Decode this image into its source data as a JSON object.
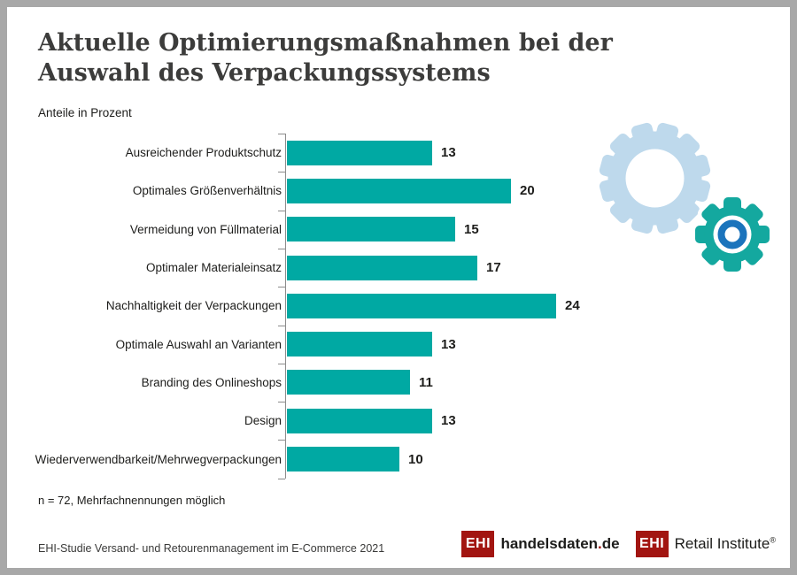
{
  "header": {
    "title_line1": "Aktuelle Optimierungsmaßnahmen bei der",
    "title_line2": "Auswahl des Verpackungssystems",
    "subtitle": "Anteile in Prozent"
  },
  "chart_data": {
    "type": "bar",
    "orientation": "horizontal",
    "title": "Aktuelle Optimierungsmaßnahmen bei der Auswahl des Verpackungssystems",
    "xlabel": "Anteile in Prozent",
    "categories": [
      "Ausreichender Produktschutz",
      "Optimales Größenverhältnis",
      "Vermeidung von Füllmaterial",
      "Optimaler Materialeinsatz",
      "Nachhaltigkeit der Verpackungen",
      "Optimale Auswahl an Varianten",
      "Branding des Onlineshops",
      "Design",
      "Wiederverwendbarkeit/Mehrwegverpackungen"
    ],
    "values": [
      13,
      20,
      15,
      17,
      24,
      13,
      11,
      13,
      10
    ],
    "xlim": [
      0,
      26
    ],
    "grid": false,
    "legend": false,
    "value_labels": true,
    "bar_color": "#00a9a3"
  },
  "footnote": "n = 72, Mehrfachnennungen möglich",
  "source": "EHI-Studie Versand- und Retourenmanagement im E-Commerce 2021",
  "logos": {
    "handelsdaten": {
      "box": "EHI",
      "name": "handelsdaten",
      "dot": ".",
      "tld": "de"
    },
    "retail": {
      "box": "EHI",
      "name": "Retail Institute",
      "reg": "®"
    }
  },
  "decor": {
    "gear_large_color": "#bed9ec",
    "gear_small_color": "#14a89f",
    "gear_ring_color": "#1b74bc",
    "frame_color": "#a8a8a8",
    "logo_red": "#a21511"
  }
}
